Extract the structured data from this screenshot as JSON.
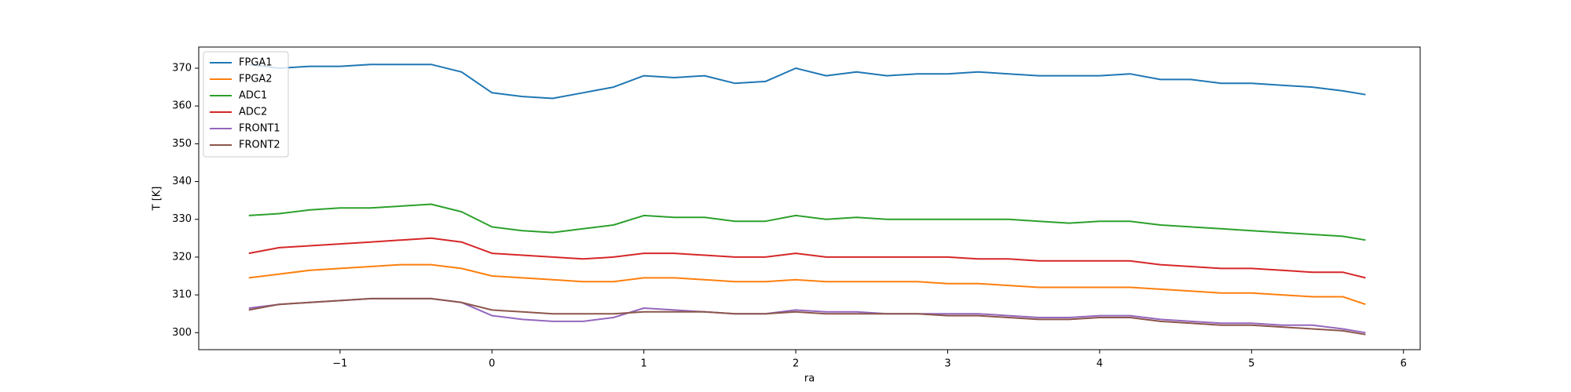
{
  "chart_data": {
    "type": "line",
    "xlabel": "ra",
    "ylabel": "T [K]",
    "x": [
      -1.6,
      -1.4,
      -1.2,
      -1.0,
      -0.8,
      -0.6,
      -0.4,
      -0.2,
      0.0,
      0.2,
      0.4,
      0.6,
      0.8,
      1.0,
      1.2,
      1.4,
      1.6,
      1.8,
      2.0,
      2.2,
      2.4,
      2.6,
      2.8,
      3.0,
      3.2,
      3.4,
      3.6,
      3.8,
      4.0,
      4.2,
      4.4,
      4.6,
      4.8,
      5.0,
      5.2,
      5.4,
      5.6,
      5.75
    ],
    "series": [
      {
        "name": "FPGA1",
        "color": "#1f77b4",
        "values": [
          371,
          370,
          370.5,
          370.5,
          371,
          371,
          371,
          369,
          363.5,
          362.5,
          362,
          363.5,
          365,
          368,
          367.5,
          368,
          366,
          366.5,
          370,
          368,
          369,
          368,
          368.5,
          368.5,
          369,
          368.5,
          368,
          368,
          368,
          368.5,
          367,
          367,
          366,
          366,
          365.5,
          365,
          364,
          363
        ]
      },
      {
        "name": "FPGA2",
        "color": "#ff7f0e",
        "values": [
          314.5,
          315.5,
          316.5,
          317,
          317.5,
          318,
          318,
          317,
          315,
          314.5,
          314,
          313.5,
          313.5,
          314.5,
          314.5,
          314,
          313.5,
          313.5,
          314,
          313.5,
          313.5,
          313.5,
          313.5,
          313,
          313,
          312.5,
          312,
          312,
          312,
          312,
          311.5,
          311,
          310.5,
          310.5,
          310,
          309.5,
          309.5,
          307.5
        ]
      },
      {
        "name": "ADC1",
        "color": "#2ca02c",
        "values": [
          331,
          331.5,
          332.5,
          333,
          333,
          333.5,
          334,
          332,
          328,
          327,
          326.5,
          327.5,
          328.5,
          331,
          330.5,
          330.5,
          329.5,
          329.5,
          331,
          330,
          330.5,
          330,
          330,
          330,
          330,
          330,
          329.5,
          329,
          329.5,
          329.5,
          328.5,
          328,
          327.5,
          327,
          326.5,
          326,
          325.5,
          324.5
        ]
      },
      {
        "name": "ADC2",
        "color": "#d62728",
        "values": [
          321,
          322.5,
          323,
          323.5,
          324,
          324.5,
          325,
          324,
          321,
          320.5,
          320,
          319.5,
          320,
          321,
          321,
          320.5,
          320,
          320,
          321,
          320,
          320,
          320,
          320,
          320,
          319.5,
          319.5,
          319,
          319,
          319,
          319,
          318,
          317.5,
          317,
          317,
          316.5,
          316,
          316,
          314.5
        ]
      },
      {
        "name": "FRONT1",
        "color": "#9467bd",
        "values": [
          306.5,
          307.5,
          308,
          308.5,
          309,
          309,
          309,
          308,
          304.5,
          303.5,
          303,
          303,
          304,
          306.5,
          306,
          305.5,
          305,
          305,
          306,
          305.5,
          305.5,
          305,
          305,
          305,
          305,
          304.5,
          304,
          304,
          304.5,
          304.5,
          303.5,
          303,
          302.5,
          302.5,
          302,
          302,
          301,
          300
        ]
      },
      {
        "name": "FRONT2",
        "color": "#8c564b",
        "values": [
          306,
          307.5,
          308,
          308.5,
          309,
          309,
          309,
          308,
          306,
          305.5,
          305,
          305,
          305,
          305.5,
          305.5,
          305.5,
          305,
          305,
          305.5,
          305,
          305,
          305,
          305,
          304.5,
          304.5,
          304,
          303.5,
          303.5,
          304,
          304,
          303,
          302.5,
          302,
          302,
          301.5,
          301,
          300.5,
          299.5
        ]
      }
    ],
    "xlim": [
      -1.93,
      6.11
    ],
    "ylim": [
      295.5,
      375.6
    ],
    "xticks": [
      {
        "value": -1,
        "label": "−1"
      },
      0,
      1,
      2,
      3,
      4,
      5,
      6
    ],
    "yticks": [
      300,
      310,
      320,
      330,
      340,
      350,
      360,
      370
    ],
    "legend": "upper left",
    "grid": false
  }
}
